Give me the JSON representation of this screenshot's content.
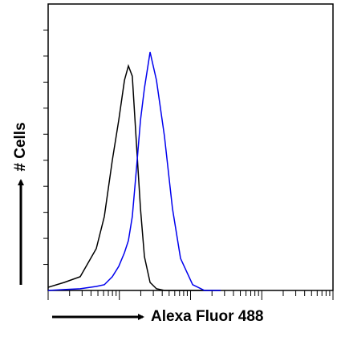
{
  "chart_data": {
    "type": "line",
    "x_label": "Alexa Fluor 488",
    "y_label": "# Cells",
    "xscale": "log",
    "xlim": [
      1,
      10000
    ],
    "ylim": [
      0,
      100
    ],
    "x": [
      1,
      1.68,
      2.82,
      4.74,
      6.15,
      7.96,
      9.8,
      11.8,
      13.4,
      15.2,
      17.4,
      19.8,
      22.5,
      27.0,
      33.2,
      43.0,
      55.7,
      72.3,
      107,
      157,
      265
    ],
    "series": [
      {
        "color": "#000000",
        "values": [
          1.1,
          2.8,
          4.8,
          14.6,
          25.8,
          45.4,
          59.4,
          73.4,
          78.4,
          74.8,
          51,
          28.6,
          11.8,
          2.8,
          0.6,
          0,
          0,
          0,
          0,
          0,
          0
        ]
      },
      {
        "color": "#0000ee",
        "values": [
          0,
          0.3,
          0.6,
          1.4,
          2,
          4.8,
          8.4,
          13.2,
          17.4,
          25.8,
          42.6,
          59.4,
          70.6,
          83.2,
          73.4,
          53.8,
          28.6,
          11.2,
          2,
          0,
          0
        ]
      }
    ]
  }
}
